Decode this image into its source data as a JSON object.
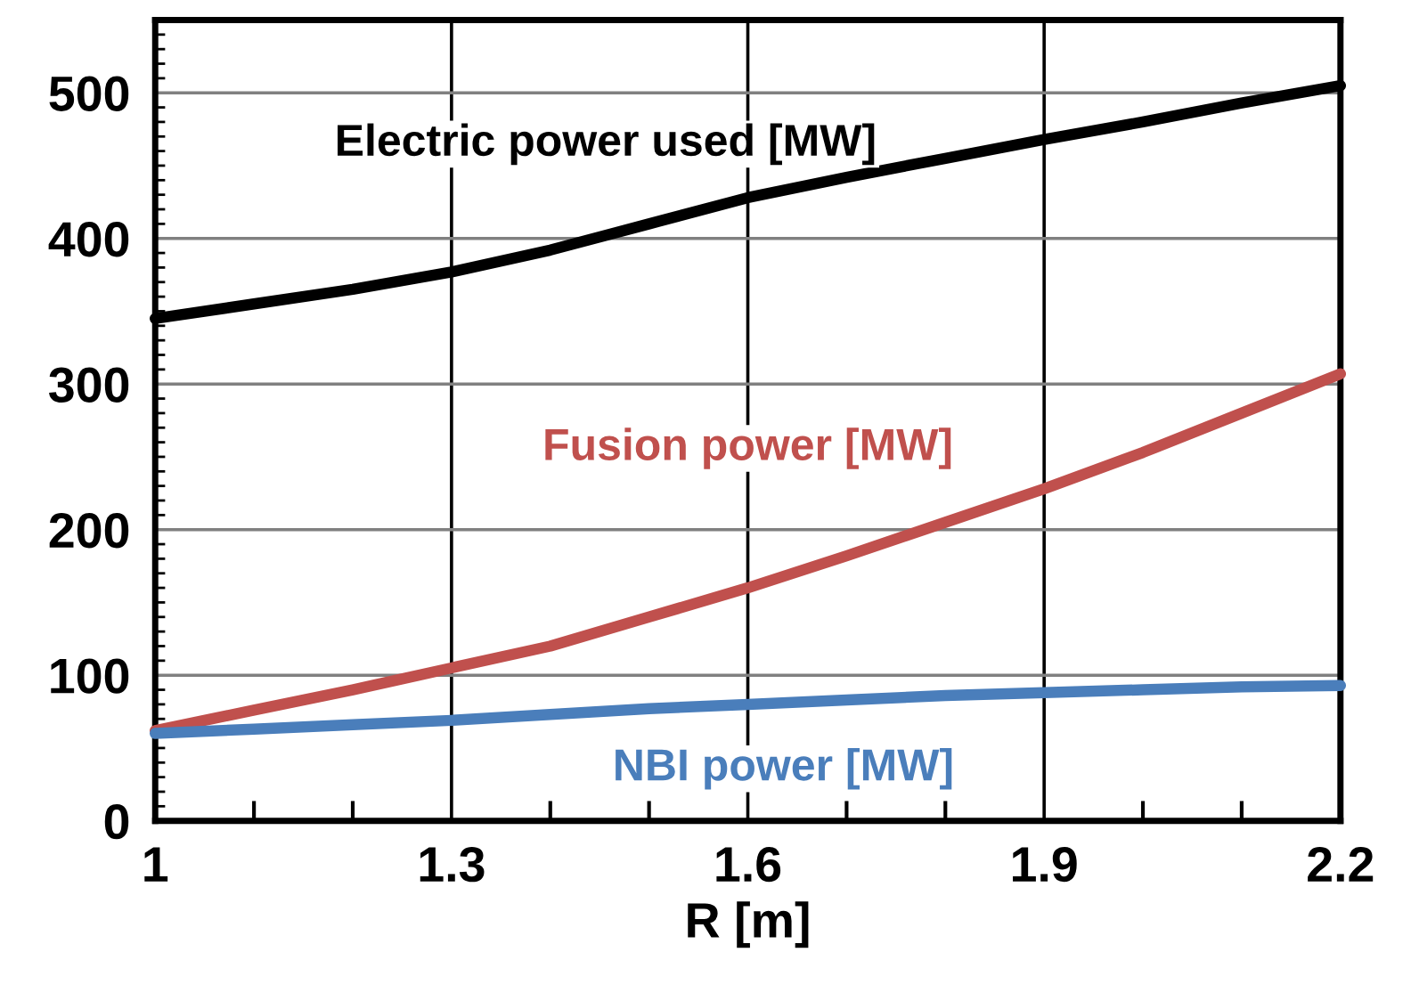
{
  "chart_data": {
    "type": "line",
    "xlabel": "R [m]",
    "x": [
      1.0,
      1.1,
      1.2,
      1.3,
      1.4,
      1.5,
      1.6,
      1.7,
      1.8,
      1.9,
      2.0,
      2.1,
      2.2
    ],
    "series": [
      {
        "name": "Electric power used [MW]",
        "color": "#000000",
        "values": [
          345,
          355,
          365,
          377,
          392,
          410,
          428,
          442,
          455,
          468,
          480,
          493,
          505
        ]
      },
      {
        "name": "Fusion power [MW]",
        "color": "#c0504d",
        "values": [
          62,
          76,
          90,
          105,
          120,
          140,
          160,
          182,
          205,
          228,
          253,
          280,
          307
        ]
      },
      {
        "name": "NBI power [MW]",
        "color": "#4a7ebb",
        "values": [
          60,
          63,
          66,
          69,
          73,
          77,
          80,
          83,
          86,
          88,
          90,
          92,
          93
        ]
      }
    ],
    "xlim": [
      1,
      2.2
    ],
    "xticks": [
      1,
      1.3,
      1.6,
      1.9,
      2.2
    ],
    "ylim": [
      0,
      550
    ],
    "yticks": [
      0,
      100,
      200,
      300,
      400,
      500
    ],
    "grid": true,
    "marker": "none",
    "line_style": "solid",
    "legend": false
  }
}
